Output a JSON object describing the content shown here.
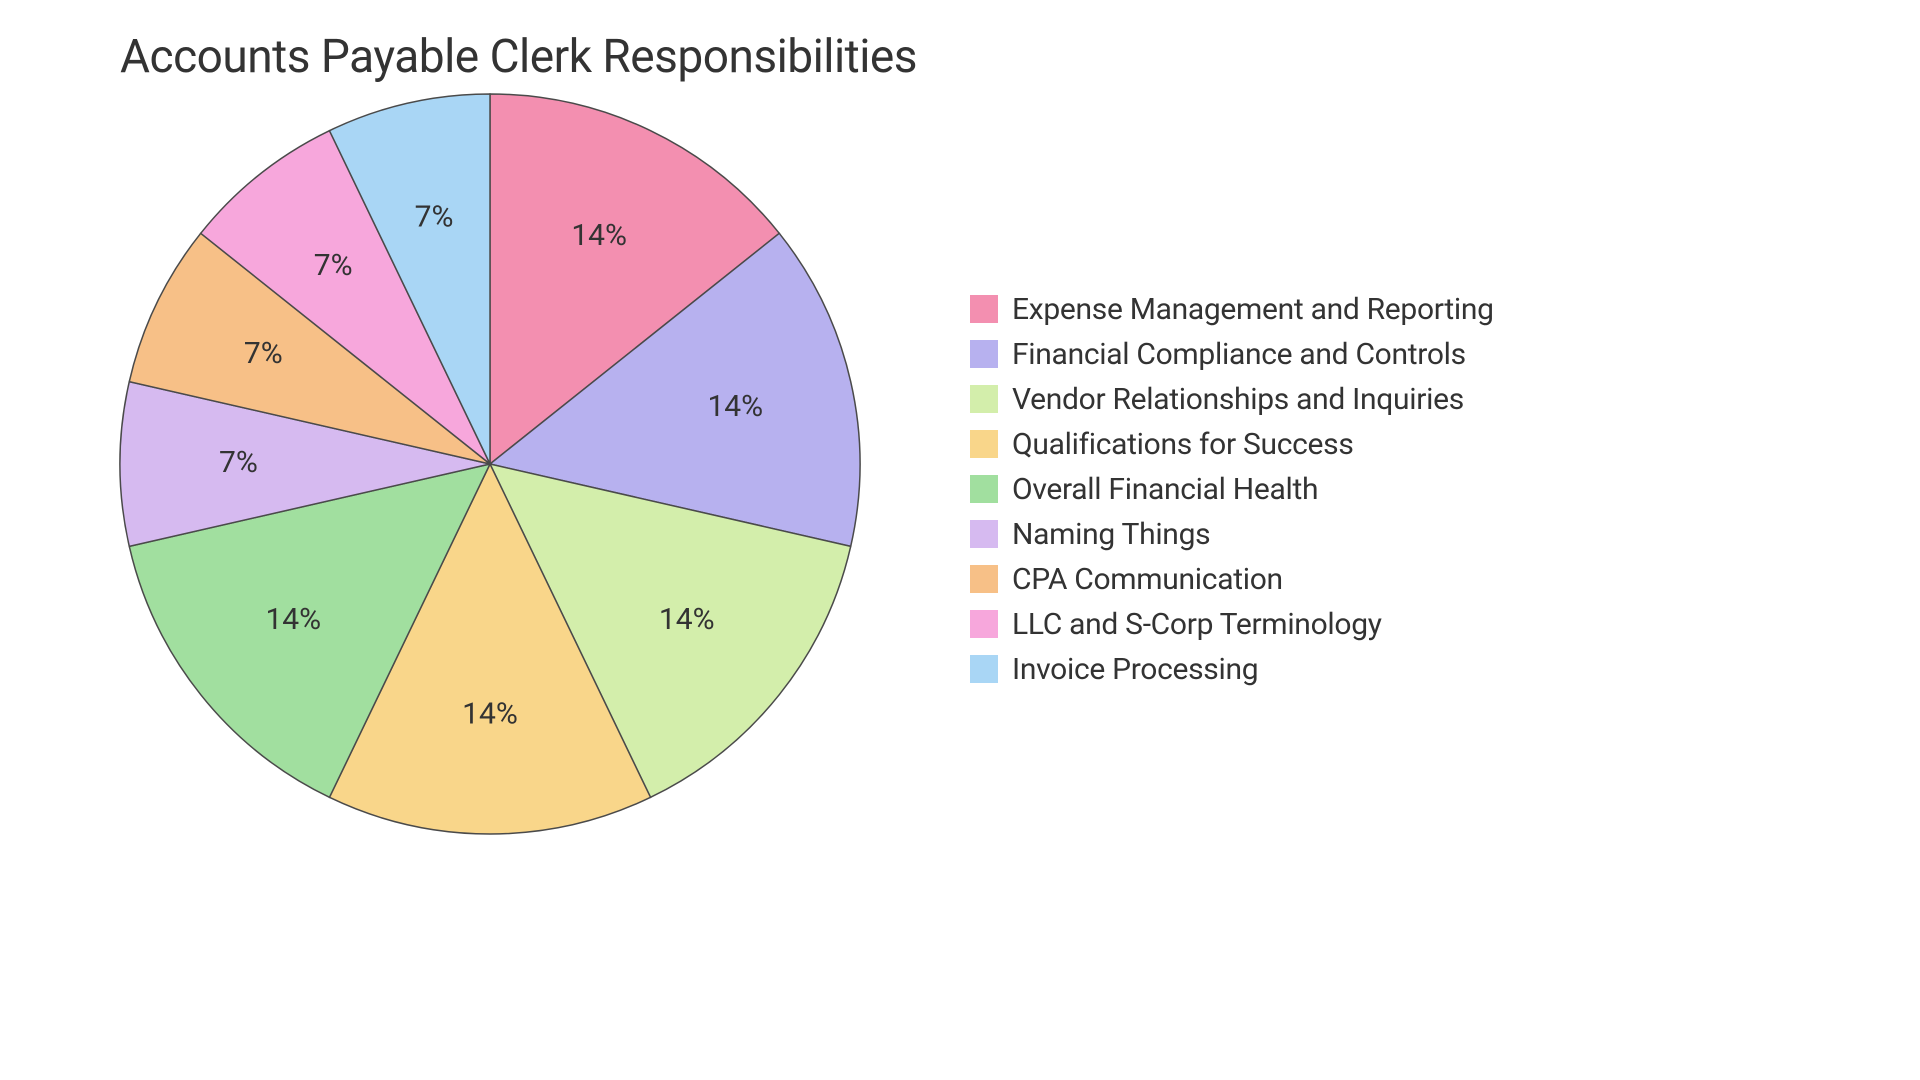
{
  "chart": {
    "type": "pie",
    "title": "Accounts Payable Clerk Responsibilities",
    "title_fontsize": 46,
    "title_color": "#333333",
    "background_color": "#ffffff",
    "stroke_color": "#4a4a4a",
    "stroke_width": 1.5,
    "start_angle": -90,
    "radius": 370,
    "label_fontsize": 30,
    "label_color": "#333333",
    "label_radius_factor": 0.68,
    "legend": {
      "position": "right",
      "swatch_size": 28,
      "font_size": 30,
      "font_color": "#333333",
      "row_gap": 10
    },
    "slices": [
      {
        "label": "Expense Management and Reporting",
        "value": 14,
        "display": "14%",
        "color": "#f38fb0"
      },
      {
        "label": "Financial Compliance and Controls",
        "value": 14,
        "display": "14%",
        "color": "#b7b1ef"
      },
      {
        "label": "Vendor Relationships and Inquiries",
        "value": 14,
        "display": "14%",
        "color": "#d3eeab"
      },
      {
        "label": "Qualifications for Success",
        "value": 14,
        "display": "14%",
        "color": "#f9d68a"
      },
      {
        "label": "Overall Financial Health",
        "value": 14,
        "display": "14%",
        "color": "#a1df9f"
      },
      {
        "label": "Naming Things",
        "value": 7,
        "display": "7%",
        "color": "#d6baf0"
      },
      {
        "label": "CPA Communication",
        "value": 7,
        "display": "7%",
        "color": "#f7c087"
      },
      {
        "label": "LLC and S-Corp Terminology",
        "value": 7,
        "display": "7%",
        "color": "#f7a7dc"
      },
      {
        "label": "Invoice Processing",
        "value": 7,
        "display": "7%",
        "color": "#a9d6f5"
      }
    ]
  }
}
